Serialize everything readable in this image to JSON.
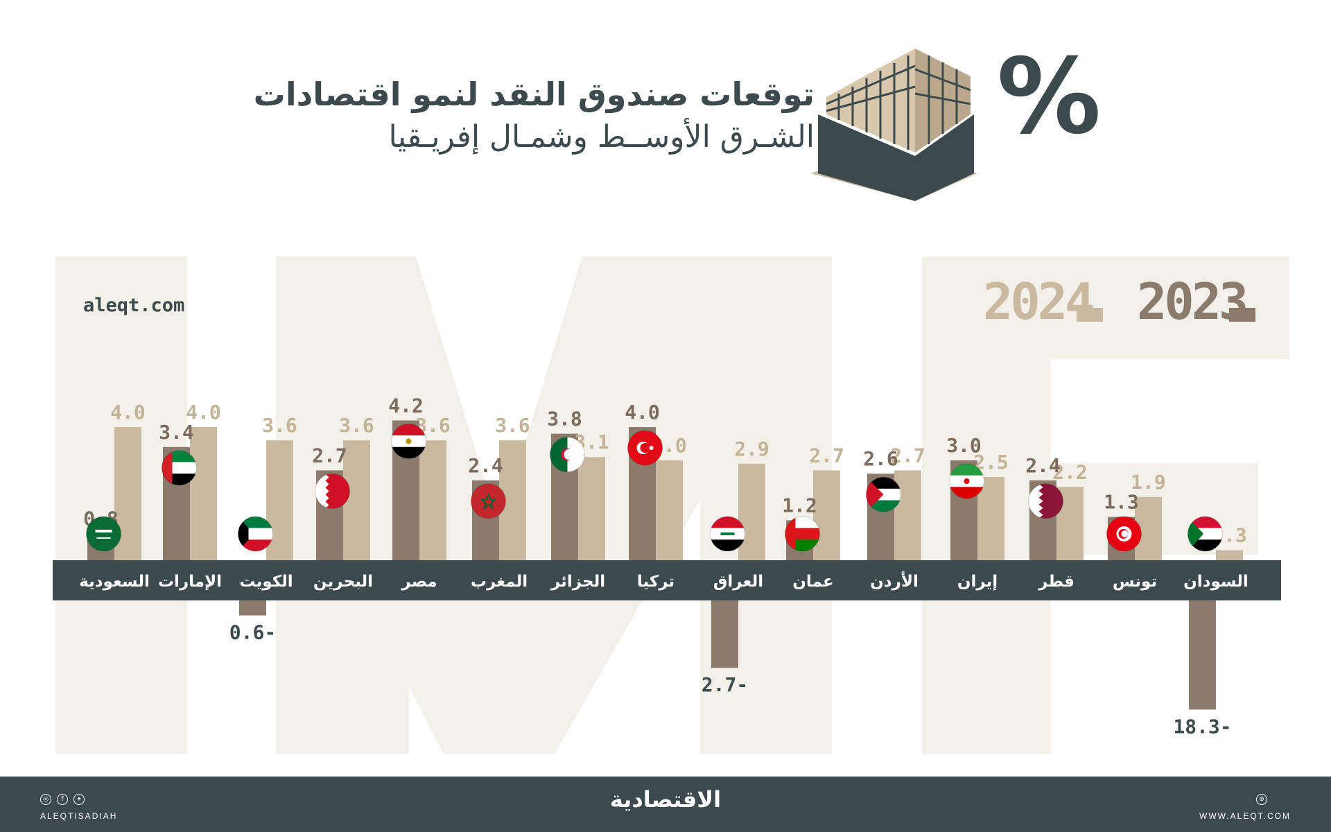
{
  "header": {
    "title_line1": "توقعات صندوق النقد لنمو اقتصادات",
    "title_line2": "الشـرق الأوســط وشمـال إفريـقيا",
    "percent_symbol": "%",
    "building_icon": "office-building-icon"
  },
  "source_label": "aleqt.com",
  "watermark_text": "IMF",
  "legend": {
    "year_2023": "2023",
    "year_2024": "2024"
  },
  "colors": {
    "bar_2023": "#8a7b6d",
    "bar_2024": "#c9b9a0",
    "label_2023": "#7a6b5d",
    "label_2024": "#c3b397",
    "band": "#3c4a4d",
    "watermark": "#f3f0ea"
  },
  "chart_data": {
    "type": "bar",
    "title": "توقعات صندوق النقد لنمو اقتصادات الشـرق الأوســط وشمـال إفريـقيا",
    "xlabel": "",
    "ylabel": "",
    "unit": "%",
    "categories": [
      "السعودية",
      "الإمارات",
      "الكويت",
      "البحرين",
      "مصر",
      "المغرب",
      "الجزائر",
      "تركيا",
      "العراق",
      "عمان",
      "الأردن",
      "إيران",
      "قطر",
      "تونس",
      "السودان"
    ],
    "series": [
      {
        "name": "2023",
        "values": [
          0.8,
          3.4,
          -0.6,
          2.7,
          4.2,
          2.4,
          3.8,
          4.0,
          -2.7,
          1.2,
          2.6,
          3.0,
          2.4,
          1.3,
          -18.3
        ]
      },
      {
        "name": "2024",
        "values": [
          4.0,
          4.0,
          3.6,
          3.6,
          3.6,
          3.6,
          3.1,
          3.0,
          2.9,
          2.7,
          2.7,
          2.5,
          2.2,
          1.9,
          0.3
        ]
      }
    ],
    "value_labels_2023": [
      "0.8",
      "3.4",
      "0.6-",
      "2.7",
      "4.2",
      "2.4",
      "3.8",
      "4.0",
      "2.7-",
      "1.2",
      "2.6",
      "3.0",
      "2.4",
      "1.3",
      "18.3-"
    ],
    "value_labels_2024": [
      "4.0",
      "4.0",
      "3.6",
      "3.6",
      "3.6",
      "3.6",
      "3.1",
      "3.0",
      "2.9",
      "2.7",
      "2.7",
      "2.5",
      "2.2",
      "1.9",
      "0.3"
    ],
    "flag_icons": [
      "saudi-arabia-flag-icon",
      "uae-flag-icon",
      "kuwait-flag-icon",
      "bahrain-flag-icon",
      "egypt-flag-icon",
      "morocco-flag-icon",
      "algeria-flag-icon",
      "turkey-flag-icon",
      "iraq-flag-icon",
      "oman-flag-icon",
      "jordan-flag-icon",
      "iran-flag-icon",
      "qatar-flag-icon",
      "tunisia-flag-icon",
      "sudan-flag-icon"
    ],
    "legend_position": "top-right",
    "grid": false
  },
  "footer": {
    "logo": "الاقتصادية",
    "handle": "ALEQTISADIAH",
    "url": "WWW.ALEQT.COM",
    "social_icons": [
      "instagram-icon",
      "facebook-icon",
      "twitter-icon"
    ],
    "url_icon": "globe-icon"
  }
}
